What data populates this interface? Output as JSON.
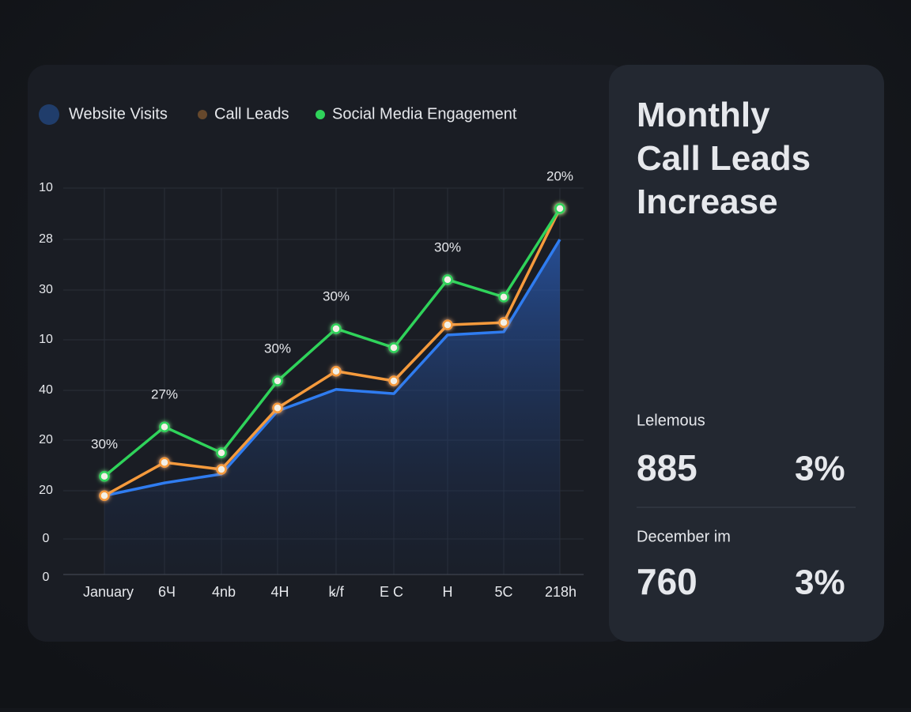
{
  "chart_data": {
    "type": "line",
    "legend": true,
    "grid": true,
    "categories": [
      "January",
      "6Ч",
      "4nb",
      "4H",
      "ꝃ/f",
      "E C",
      "H",
      "5C",
      "218h"
    ],
    "y_labels": [
      "10",
      "28",
      "30",
      "10",
      "40",
      "20",
      "20",
      "0",
      "0"
    ],
    "ylim": [
      0,
      100
    ],
    "series": [
      {
        "name": "Website Visits",
        "color": "#2f7cf0",
        "area": true,
        "values": [
          20.4,
          23.7,
          26.0,
          42.3,
          47.9,
          46.8,
          62.0,
          62.8,
          86.7
        ]
      },
      {
        "name": "Call Leads",
        "color": "#f59a3c",
        "values": [
          20.4,
          29.0,
          27.2,
          43.1,
          52.6,
          50.1,
          64.6,
          65.2,
          94.7
        ]
      },
      {
        "name": "Social Media Engagement",
        "color": "#2fd35a",
        "values": [
          25.4,
          38.2,
          31.5,
          50.1,
          63.6,
          58.7,
          76.3,
          71.8,
          94.7
        ]
      }
    ],
    "annotations": [
      "30%",
      "27%",
      "30%",
      "30%",
      "30%",
      "20%"
    ]
  },
  "panel": {
    "title": "Monthly Call Leads Increase",
    "stats": [
      {
        "label": "Lelemous",
        "value": 885,
        "change": "3%"
      },
      {
        "label": "December im",
        "value": 760,
        "change": "3%"
      }
    ]
  }
}
